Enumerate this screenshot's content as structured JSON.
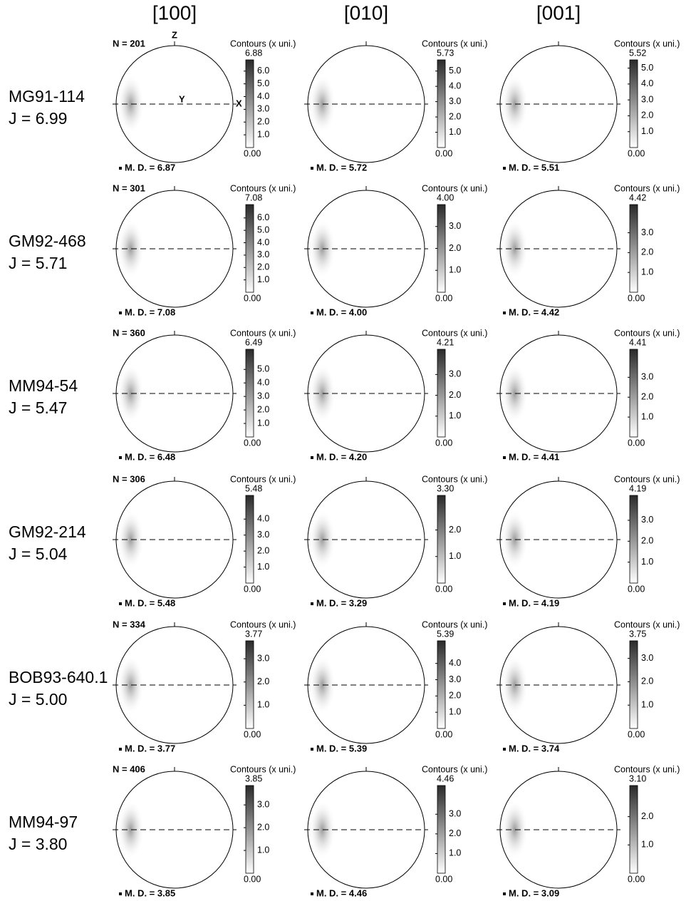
{
  "columns": [
    "[100]",
    "[010]",
    "[001]"
  ],
  "colorbar_title": "Contours (x uni.)",
  "axis_labels": {
    "z": "Z",
    "y": "Y",
    "x": "X"
  },
  "rows": [
    {
      "sample": "MG91-114",
      "j": "J = 6.99",
      "n": "N = 201",
      "panels": [
        {
          "max": "6.88",
          "ticks": [
            "6.0",
            "5.0",
            "4.0",
            "3.0",
            "2.0",
            "1.0"
          ],
          "min": "0.00",
          "md": "M. D. = 6.87"
        },
        {
          "max": "5.73",
          "ticks": [
            "5.0",
            "4.0",
            "3.0",
            "2.0",
            "1.0"
          ],
          "min": "0.00",
          "md": "M. D. = 5.72"
        },
        {
          "max": "5.52",
          "ticks": [
            "5.0",
            "4.0",
            "3.0",
            "2.0",
            "1.0"
          ],
          "min": "0.00",
          "md": "M. D. = 5.51"
        }
      ]
    },
    {
      "sample": "GM92-468",
      "j": "J = 5.71",
      "n": "N = 301",
      "panels": [
        {
          "max": "7.08",
          "ticks": [
            "6.0",
            "5.0",
            "4.0",
            "3.0",
            "2.0",
            "1.0"
          ],
          "min": "0.00",
          "md": "M. D. = 7.08"
        },
        {
          "max": "4.00",
          "ticks": [
            "3.0",
            "2.0",
            "1.0"
          ],
          "min": "0.00",
          "md": "M. D. = 4.00"
        },
        {
          "max": "4.42",
          "ticks": [
            "3.0",
            "2.0",
            "1.0"
          ],
          "min": "0.00",
          "md": "M. D. = 4.42"
        }
      ]
    },
    {
      "sample": "MM94-54",
      "j": "J = 5.47",
      "n": "N = 360",
      "panels": [
        {
          "max": "6.49",
          "ticks": [
            "5.0",
            "4.0",
            "3.0",
            "2.0",
            "1.0"
          ],
          "min": "0.00",
          "md": "M. D. = 6.48"
        },
        {
          "max": "4.21",
          "ticks": [
            "3.0",
            "2.0",
            "1.0"
          ],
          "min": "0.00",
          "md": "M. D. = 4.20"
        },
        {
          "max": "4.41",
          "ticks": [
            "3.0",
            "2.0",
            "1.0"
          ],
          "min": "0.00",
          "md": "M. D. = 4.41"
        }
      ]
    },
    {
      "sample": "GM92-214",
      "j": "J = 5.04",
      "n": "N = 306",
      "panels": [
        {
          "max": "5.48",
          "ticks": [
            "4.0",
            "3.0",
            "2.0",
            "1.0"
          ],
          "min": "0.00",
          "md": "M. D. = 5.48"
        },
        {
          "max": "3.30",
          "ticks": [
            "2.0",
            "1.0"
          ],
          "min": "0.00",
          "md": "M. D. = 3.29"
        },
        {
          "max": "4.19",
          "ticks": [
            "3.0",
            "2.0",
            "1.0"
          ],
          "min": "0.00",
          "md": "M. D. = 4.19"
        }
      ]
    },
    {
      "sample": "BOB93-640.1",
      "j": "J = 5.00",
      "n": "N = 334",
      "panels": [
        {
          "max": "3.77",
          "ticks": [
            "3.0",
            "2.0",
            "1.0"
          ],
          "min": "0.00",
          "md": "M. D. = 3.77"
        },
        {
          "max": "5.39",
          "ticks": [
            "4.0",
            "3.0",
            "2.0",
            "1.0"
          ],
          "min": "0.00",
          "md": "M. D. = 5.39"
        },
        {
          "max": "3.75",
          "ticks": [
            "3.0",
            "2.0",
            "1.0"
          ],
          "min": "0.00",
          "md": "M. D. = 3.74"
        }
      ]
    },
    {
      "sample": "MM94-97",
      "j": "J = 3.80",
      "n": "N = 406",
      "panels": [
        {
          "max": "3.85",
          "ticks": [
            "3.0",
            "2.0",
            "1.0"
          ],
          "min": "0.00",
          "md": "M. D. = 3.85"
        },
        {
          "max": "4.46",
          "ticks": [
            "3.0",
            "2.0",
            "1.0"
          ],
          "min": "0.00",
          "md": "M. D. = 4.46"
        },
        {
          "max": "3.10",
          "ticks": [
            "2.0",
            "1.0"
          ],
          "min": "0.00",
          "md": "M. D. = 3.09"
        }
      ]
    }
  ]
}
